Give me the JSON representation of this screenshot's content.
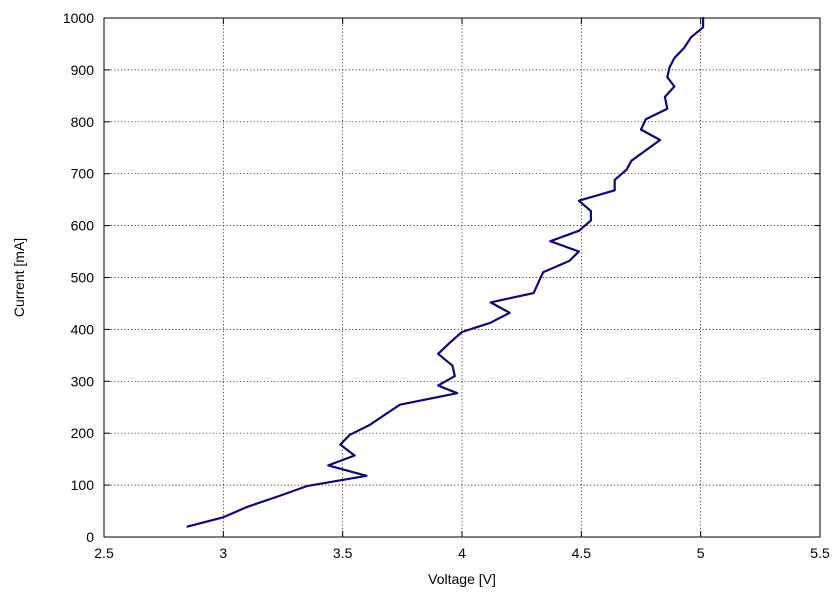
{
  "chart_data": {
    "type": "line",
    "title": "",
    "xlabel": "Voltage [V]",
    "ylabel": "Current [mA]",
    "xlim": [
      2.5,
      5.5
    ],
    "ylim": [
      0,
      1000
    ],
    "x_ticks": [
      "2.5",
      "3",
      "3.5",
      "4",
      "4.5",
      "5",
      "5.5"
    ],
    "y_ticks": [
      "0",
      "100",
      "200",
      "300",
      "400",
      "500",
      "600",
      "700",
      "800",
      "900",
      "1000"
    ],
    "grid": true,
    "legend": "none",
    "series": [
      {
        "color": "#0a0a78",
        "x": [
          2.85,
          3.0,
          3.1,
          3.24,
          3.35,
          3.6,
          3.44,
          3.55,
          3.49,
          3.53,
          3.61,
          3.74,
          3.98,
          3.9,
          3.97,
          3.96,
          3.9,
          3.95,
          4.0,
          4.12,
          4.2,
          4.12,
          4.3,
          4.34,
          4.45,
          4.49,
          4.37,
          4.49,
          4.54,
          4.54,
          4.49,
          4.64,
          4.64,
          4.69,
          4.71,
          4.83,
          4.75,
          4.77,
          4.86,
          4.85,
          4.89,
          4.86,
          4.87,
          4.89,
          4.93,
          4.96,
          5.01,
          5.01
        ],
        "y": [
          20,
          38,
          58,
          80,
          98,
          118,
          138,
          157,
          178,
          197,
          215,
          255,
          277,
          292,
          310,
          330,
          353,
          375,
          395,
          413,
          432,
          452,
          470,
          510,
          532,
          550,
          570,
          590,
          610,
          628,
          648,
          668,
          688,
          708,
          725,
          765,
          785,
          805,
          825,
          848,
          868,
          886,
          905,
          923,
          942,
          963,
          982,
          1000
        ]
      }
    ]
  }
}
